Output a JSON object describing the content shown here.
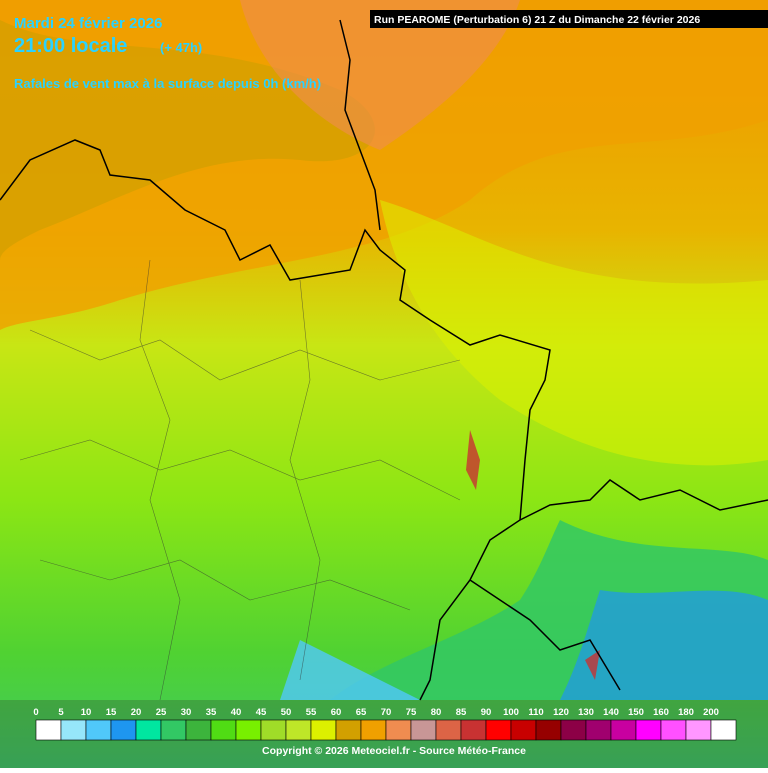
{
  "header": {
    "date": "Mardi 24 février 2026",
    "time": "21:00 locale",
    "lead": "(+ 47h)",
    "parameter": "Rafales de vent max à la surface depuis 0h (km/h)",
    "run": "Run PEAROME (Perturbation 6) 21 Z du Dimanche 22 février 2026"
  },
  "legend": {
    "entries": [
      {
        "label": "0",
        "color": "#ffffff"
      },
      {
        "label": "5",
        "color": "#96e6fa"
      },
      {
        "label": "10",
        "color": "#50c8fa"
      },
      {
        "label": "15",
        "color": "#1e96f0"
      },
      {
        "label": "20",
        "color": "#00e6a0"
      },
      {
        "label": "25",
        "color": "#32c864"
      },
      {
        "label": "30",
        "color": "#3cb43c"
      },
      {
        "label": "35",
        "color": "#50dc14"
      },
      {
        "label": "40",
        "color": "#78f000"
      },
      {
        "label": "45",
        "color": "#a0dc28"
      },
      {
        "label": "50",
        "color": "#bee628"
      },
      {
        "label": "55",
        "color": "#dcf000"
      },
      {
        "label": "60",
        "color": "#d2a000"
      },
      {
        "label": "65",
        "color": "#f0a000"
      },
      {
        "label": "70",
        "color": "#f08c50"
      },
      {
        "label": "75",
        "color": "#c89696"
      },
      {
        "label": "80",
        "color": "#dc6446"
      },
      {
        "label": "85",
        "color": "#c83232"
      },
      {
        "label": "90",
        "color": "#ff0000"
      },
      {
        "label": "100",
        "color": "#c80000"
      },
      {
        "label": "110",
        "color": "#960000"
      },
      {
        "label": "120",
        "color": "#8c0046"
      },
      {
        "label": "130",
        "color": "#a0006e"
      },
      {
        "label": "140",
        "color": "#c800a0"
      },
      {
        "label": "150",
        "color": "#ff00ff"
      },
      {
        "label": "160",
        "color": "#ff50ff"
      },
      {
        "label": "180",
        "color": "#ff96ff"
      },
      {
        "label": "200",
        "color": "#ffffff"
      }
    ]
  },
  "footer": {
    "copyright": "Copyright © 2026 Meteociel.fr - Source Météo-France"
  }
}
